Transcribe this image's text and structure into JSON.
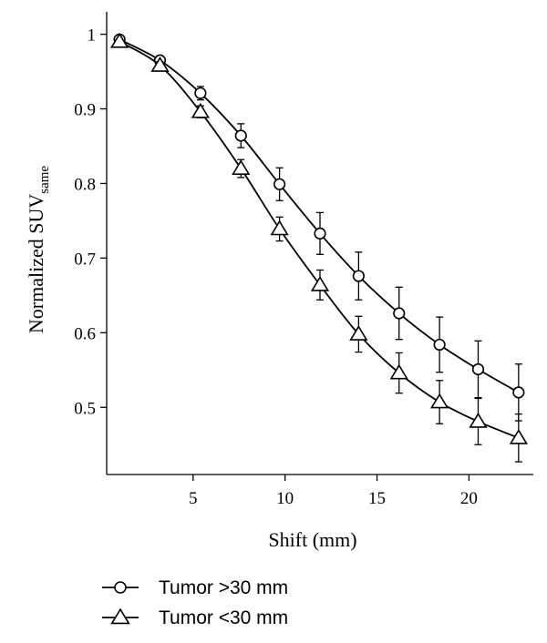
{
  "chart_data": {
    "type": "line",
    "xlabel": "Shift (mm)",
    "ylabel": {
      "main": "Normalized SUV",
      "subscript": "same"
    },
    "xlim": [
      0.3,
      23.5
    ],
    "ylim": [
      0.41,
      1.03
    ],
    "xticks": [
      5,
      10,
      15,
      20
    ],
    "xtick_labels": [
      "5",
      "10",
      "15",
      "20"
    ],
    "yticks": [
      0.5,
      0.6,
      0.7,
      0.8,
      0.9,
      1.0
    ],
    "ytick_labels": [
      "0.5",
      "0.6",
      "0.7",
      "0.8",
      "0.9",
      "1"
    ],
    "grid": false,
    "legend_position": "bottom-left, below plot",
    "series": [
      {
        "name": "Tumor >30 mm",
        "marker": "circle",
        "x": [
          1.0,
          3.2,
          5.4,
          7.6,
          9.7,
          11.9,
          14.0,
          16.2,
          18.4,
          20.5,
          22.7
        ],
        "y": [
          0.993,
          0.965,
          0.921,
          0.864,
          0.799,
          0.733,
          0.676,
          0.626,
          0.584,
          0.551,
          0.52
        ],
        "error": [
          0.003,
          0.005,
          0.009,
          0.016,
          0.022,
          0.028,
          0.032,
          0.035,
          0.037,
          0.038,
          0.038
        ]
      },
      {
        "name": "Tumor <30 mm",
        "marker": "triangle",
        "x": [
          1.0,
          3.2,
          5.4,
          7.6,
          9.7,
          11.9,
          14.0,
          16.2,
          18.4,
          20.5,
          22.7
        ],
        "y": [
          0.99,
          0.958,
          0.896,
          0.82,
          0.739,
          0.664,
          0.598,
          0.546,
          0.507,
          0.481,
          0.459
        ],
        "error": [
          0.003,
          0.005,
          0.008,
          0.012,
          0.016,
          0.02,
          0.024,
          0.027,
          0.029,
          0.031,
          0.032
        ]
      }
    ],
    "legend": [
      {
        "label": "Tumor >30 mm",
        "marker": "circle"
      },
      {
        "label": "Tumor <30 mm",
        "marker": "triangle"
      }
    ]
  }
}
